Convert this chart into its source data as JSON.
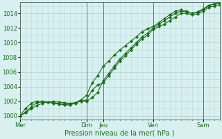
{
  "xlabel": "Pression niveau de la mer( hPa )",
  "bg_color": "#d8f0f0",
  "grid_color": "#b8d8d8",
  "line_color": "#1a6e1a",
  "marker_color": "#1a6e1a",
  "ylim": [
    999.5,
    1015.5
  ],
  "xlim": [
    0,
    36
  ],
  "yticks": [
    1000,
    1002,
    1004,
    1006,
    1008,
    1010,
    1012,
    1014
  ],
  "x_day_labels": [
    "Mer",
    "Dim",
    "Jeu",
    "Ven",
    "Sam"
  ],
  "x_day_positions": [
    0,
    12,
    15,
    24,
    33
  ],
  "series1_x": [
    0,
    1,
    2,
    3,
    4,
    5,
    6,
    7,
    8,
    9,
    10,
    11,
    12,
    13,
    14,
    15,
    16,
    17,
    18,
    19,
    20,
    21,
    22,
    23,
    24,
    25,
    26,
    27,
    28,
    29,
    30,
    31,
    32,
    33,
    34,
    35,
    36
  ],
  "series1_y": [
    1000.0,
    1000.4,
    1001.0,
    1001.4,
    1001.7,
    1001.9,
    1002.0,
    1001.9,
    1001.8,
    1001.7,
    1001.8,
    1002.0,
    1002.2,
    1003.5,
    1004.2,
    1004.5,
    1005.5,
    1006.5,
    1007.5,
    1008.2,
    1009.0,
    1009.8,
    1010.5,
    1011.0,
    1011.8,
    1012.2,
    1012.5,
    1013.0,
    1013.5,
    1014.0,
    1014.0,
    1013.8,
    1013.9,
    1014.3,
    1014.8,
    1015.0,
    1015.2
  ],
  "series2_x": [
    0,
    1,
    2,
    3,
    4,
    5,
    6,
    7,
    8,
    9,
    10,
    11,
    12,
    13,
    14,
    15,
    16,
    17,
    18,
    19,
    20,
    21,
    22,
    23,
    24,
    25,
    26,
    27,
    28,
    29,
    30,
    31,
    32,
    33,
    34,
    35,
    36
  ],
  "series2_y": [
    1000.0,
    1000.5,
    1001.2,
    1001.8,
    1001.9,
    1001.9,
    1001.8,
    1001.7,
    1001.6,
    1001.6,
    1001.8,
    1002.2,
    1002.8,
    1004.5,
    1005.5,
    1006.8,
    1007.5,
    1008.3,
    1009.0,
    1009.6,
    1010.2,
    1010.8,
    1011.5,
    1011.9,
    1012.2,
    1012.7,
    1013.3,
    1013.8,
    1014.3,
    1014.5,
    1014.3,
    1014.0,
    1014.1,
    1014.5,
    1015.0,
    1015.3,
    1015.5
  ],
  "series3_x": [
    0,
    1,
    2,
    3,
    4,
    5,
    6,
    7,
    8,
    9,
    10,
    11,
    12,
    13,
    14,
    15,
    16,
    17,
    18,
    19,
    20,
    21,
    22,
    23,
    24,
    25,
    26,
    27,
    28,
    29,
    30,
    31,
    32,
    33,
    34,
    35,
    36
  ],
  "series3_y": [
    1000.0,
    1001.0,
    1001.7,
    1002.0,
    1002.0,
    1001.9,
    1001.7,
    1001.6,
    1001.5,
    1001.5,
    1001.7,
    1002.1,
    1002.0,
    1002.5,
    1003.2,
    1004.8,
    1005.8,
    1006.8,
    1007.8,
    1008.5,
    1009.3,
    1010.0,
    1010.8,
    1011.3,
    1012.0,
    1012.5,
    1013.0,
    1013.5,
    1014.0,
    1014.3,
    1014.2,
    1014.0,
    1014.2,
    1014.6,
    1015.1,
    1015.3,
    1015.4
  ]
}
